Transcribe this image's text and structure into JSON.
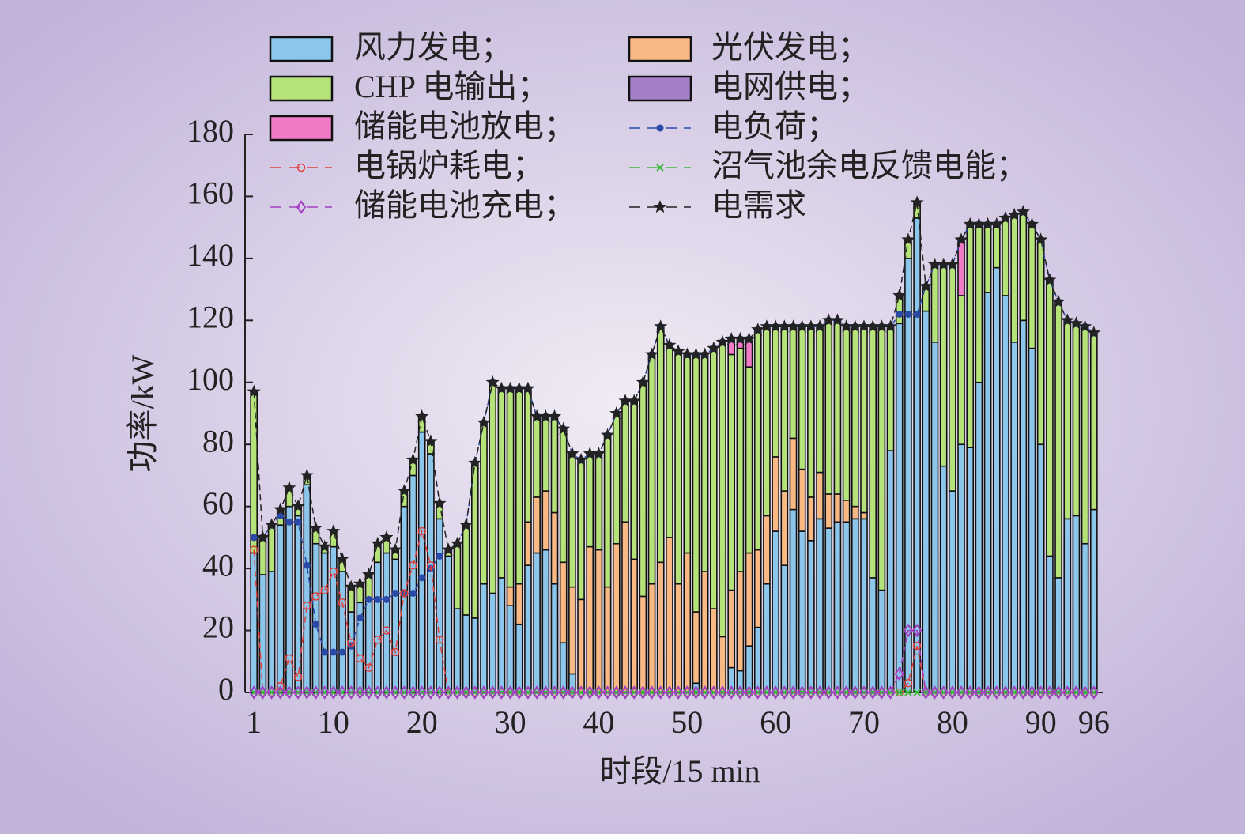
{
  "chart_data": {
    "type": "bar",
    "stacked": true,
    "xlabel": "时段/15 min",
    "ylabel": "功率/kW",
    "xlim": [
      0,
      97
    ],
    "ylim": [
      0,
      180
    ],
    "xticks": [
      1,
      10,
      20,
      30,
      40,
      50,
      60,
      70,
      80,
      90,
      96
    ],
    "yticks": [
      0,
      20,
      40,
      60,
      80,
      100,
      120,
      140,
      160,
      180
    ],
    "x": [
      1,
      2,
      3,
      4,
      5,
      6,
      7,
      8,
      9,
      10,
      11,
      12,
      13,
      14,
      15,
      16,
      17,
      18,
      19,
      20,
      21,
      22,
      23,
      24,
      25,
      26,
      27,
      28,
      29,
      30,
      31,
      32,
      33,
      34,
      35,
      36,
      37,
      38,
      39,
      40,
      41,
      42,
      43,
      44,
      45,
      46,
      47,
      48,
      49,
      50,
      51,
      52,
      53,
      54,
      55,
      56,
      57,
      58,
      59,
      60,
      61,
      62,
      63,
      64,
      65,
      66,
      67,
      68,
      69,
      70,
      71,
      72,
      73,
      74,
      75,
      76,
      77,
      78,
      79,
      80,
      81,
      82,
      83,
      84,
      85,
      86,
      87,
      88,
      89,
      90,
      91,
      92,
      93,
      94,
      95,
      96
    ],
    "series": [
      {
        "name": "风力发电；",
        "type": "bar",
        "color": "#8cc6ea",
        "values": [
          45,
          38,
          39,
          54,
          60,
          57,
          67,
          48,
          45,
          47,
          39,
          26,
          29,
          30,
          42,
          45,
          43,
          60,
          70,
          84,
          77,
          56,
          44,
          27,
          25,
          24,
          35,
          32,
          37,
          28,
          22,
          41,
          45,
          46,
          35,
          16,
          6,
          0,
          0,
          0,
          0,
          0,
          0,
          0,
          0,
          0,
          0,
          0,
          0,
          0,
          3,
          0,
          0,
          0,
          8,
          7,
          15,
          21,
          35,
          52,
          41,
          59,
          52,
          49,
          56,
          53,
          55,
          55,
          56,
          56,
          37,
          33,
          78,
          119,
          140,
          153,
          123,
          113,
          73,
          65,
          80,
          79,
          100,
          129,
          137,
          128,
          113,
          120,
          111,
          80,
          44,
          37,
          56,
          57,
          48,
          59
        ]
      },
      {
        "name": "光伏发电；",
        "type": "bar",
        "color": "#f9b985",
        "values": [
          0,
          0,
          0,
          0,
          0,
          0,
          0,
          0,
          0,
          0,
          0,
          0,
          0,
          0,
          0,
          0,
          0,
          0,
          0,
          0,
          0,
          0,
          0,
          0,
          0,
          0,
          0,
          0,
          0,
          6,
          13,
          14,
          18,
          19,
          23,
          26,
          28,
          30,
          47,
          46,
          34,
          48,
          55,
          43,
          31,
          35,
          42,
          50,
          35,
          45,
          23,
          39,
          27,
          18,
          25,
          32,
          30,
          25,
          22,
          24,
          24,
          23,
          20,
          14,
          15,
          11,
          9,
          7,
          4,
          2,
          0,
          0,
          0,
          0,
          0,
          0,
          0,
          0,
          0,
          0,
          0,
          0,
          0,
          0,
          0,
          0,
          0,
          0,
          0,
          0,
          0,
          0,
          0,
          0,
          0,
          0
        ]
      },
      {
        "name": "CHP 电输出；",
        "type": "bar",
        "color": "#b6e27a",
        "values": [
          52,
          12,
          15,
          5,
          6,
          3,
          3,
          5,
          2,
          5,
          4,
          8,
          6,
          8,
          6,
          5,
          3,
          5,
          5,
          5,
          4,
          5,
          2,
          21,
          29,
          50,
          52,
          68,
          61,
          64,
          63,
          43,
          26,
          24,
          31,
          43,
          43,
          45,
          30,
          31,
          49,
          42,
          39,
          51,
          69,
          74,
          76,
          62,
          75,
          64,
          83,
          70,
          84,
          95,
          76,
          72,
          60,
          71,
          61,
          42,
          53,
          36,
          46,
          55,
          47,
          56,
          56,
          56,
          58,
          60,
          81,
          85,
          40,
          9,
          6,
          5,
          8,
          25,
          65,
          73,
          48,
          72,
          51,
          22,
          14,
          25,
          41,
          35,
          40,
          66,
          89,
          89,
          64,
          62,
          70,
          57
        ]
      },
      {
        "name": "电网供电；",
        "type": "bar",
        "color": "#a47fc8",
        "values": [
          0,
          0,
          0,
          0,
          0,
          0,
          0,
          0,
          0,
          0,
          0,
          0,
          0,
          0,
          0,
          0,
          0,
          0,
          0,
          0,
          0,
          0,
          0,
          0,
          0,
          0,
          0,
          0,
          0,
          0,
          0,
          0,
          0,
          0,
          0,
          0,
          0,
          0,
          0,
          0,
          0,
          0,
          0,
          0,
          0,
          0,
          0,
          0,
          0,
          0,
          0,
          0,
          0,
          0,
          0,
          0,
          0,
          0,
          0,
          0,
          0,
          0,
          0,
          0,
          0,
          0,
          0,
          0,
          0,
          0,
          0,
          0,
          0,
          0,
          0,
          0,
          0,
          0,
          0,
          0,
          0,
          0,
          0,
          0,
          0,
          0,
          0,
          0,
          0,
          0,
          0,
          0,
          0,
          0,
          0,
          0
        ]
      },
      {
        "name": "储能电池放电；",
        "type": "bar",
        "color": "#f07ac6",
        "values": [
          0,
          0,
          0,
          0,
          0,
          0,
          0,
          0,
          0,
          0,
          0,
          0,
          0,
          0,
          0,
          0,
          0,
          0,
          0,
          0,
          0,
          0,
          0,
          0,
          0,
          0,
          0,
          0,
          0,
          0,
          0,
          0,
          0,
          0,
          0,
          0,
          0,
          0,
          0,
          0,
          0,
          0,
          0,
          0,
          0,
          0,
          0,
          0,
          0,
          0,
          0,
          0,
          0,
          0,
          5,
          3,
          9,
          0,
          0,
          0,
          0,
          0,
          0,
          0,
          0,
          0,
          0,
          0,
          0,
          0,
          0,
          0,
          0,
          0,
          0,
          0,
          0,
          0,
          0,
          0,
          18,
          0,
          0,
          0,
          0,
          0,
          0,
          0,
          0,
          0,
          0,
          0,
          0,
          0,
          0,
          0
        ]
      },
      {
        "name": "电负荷；",
        "type": "line",
        "marker": "dot",
        "color": "#2b4aa8",
        "values": [
          50,
          50,
          54,
          57,
          55,
          55,
          41,
          22,
          13,
          13,
          13,
          15,
          24,
          30,
          30,
          30,
          32,
          32,
          32,
          37,
          40,
          44,
          46,
          48,
          54,
          74,
          87,
          100,
          98,
          98,
          98,
          98,
          89,
          89,
          89,
          85,
          77,
          75,
          77,
          77,
          83,
          90,
          94,
          94,
          100,
          109,
          118,
          112,
          110,
          109,
          109,
          109,
          111,
          113,
          114,
          114,
          114,
          117,
          118,
          118,
          118,
          118,
          118,
          118,
          118,
          120,
          120,
          118,
          118,
          118,
          118,
          118,
          118,
          122,
          122,
          122,
          131,
          138,
          138,
          138,
          146,
          151,
          151,
          151,
          151,
          153,
          154,
          155,
          151,
          146,
          133,
          126,
          120,
          119,
          118,
          116
        ]
      },
      {
        "name": "电锅炉耗电；",
        "type": "line",
        "marker": "circle",
        "color": "#e0403a",
        "values": [
          46,
          0,
          0,
          2,
          11,
          5,
          28,
          31,
          33,
          39,
          29,
          16,
          11,
          8,
          17,
          20,
          13,
          32,
          41,
          52,
          41,
          17,
          0,
          0,
          0,
          0,
          0,
          0,
          0,
          0,
          0,
          0,
          0,
          0,
          0,
          0,
          0,
          0,
          0,
          0,
          0,
          0,
          0,
          0,
          0,
          0,
          0,
          0,
          0,
          0,
          0,
          0,
          0,
          0,
          0,
          0,
          0,
          0,
          0,
          0,
          0,
          0,
          0,
          0,
          0,
          0,
          0,
          0,
          0,
          0,
          0,
          0,
          0,
          0,
          3,
          15,
          0,
          0,
          0,
          0,
          0,
          0,
          0,
          0,
          0,
          0,
          0,
          0,
          0,
          0,
          0,
          0,
          0,
          0,
          0,
          0
        ]
      },
      {
        "name": "沼气池余电反馈电能；",
        "type": "line",
        "marker": "x",
        "color": "#3db83d",
        "values": [
          0,
          0,
          0,
          0,
          0,
          0,
          0,
          0,
          0,
          0,
          0,
          0,
          0,
          0,
          0,
          0,
          0,
          0,
          0,
          0,
          0,
          0,
          0,
          0,
          0,
          0,
          0,
          0,
          0,
          0,
          0,
          0,
          0,
          0,
          0,
          0,
          0,
          0,
          0,
          0,
          0,
          0,
          0,
          0,
          0,
          0,
          0,
          0,
          0,
          0,
          0,
          0,
          0,
          0,
          0,
          0,
          0,
          0,
          0,
          0,
          0,
          0,
          0,
          0,
          0,
          0,
          0,
          0,
          0,
          0,
          0,
          0,
          0,
          0,
          0,
          0,
          0,
          0,
          0,
          0,
          0,
          0,
          0,
          0,
          0,
          0,
          0,
          0,
          0,
          0,
          0,
          0,
          0,
          0,
          0,
          0
        ]
      },
      {
        "name": "储能电池充电；",
        "type": "line",
        "marker": "diamond",
        "color": "#a040c0",
        "values": [
          0,
          0,
          0,
          0,
          0,
          0,
          0,
          0,
          0,
          0,
          0,
          0,
          0,
          0,
          0,
          0,
          0,
          0,
          0,
          0,
          0,
          0,
          0,
          0,
          0,
          0,
          0,
          0,
          0,
          0,
          0,
          0,
          0,
          0,
          0,
          0,
          0,
          0,
          0,
          0,
          0,
          0,
          0,
          0,
          0,
          0,
          0,
          0,
          0,
          0,
          0,
          0,
          0,
          0,
          0,
          0,
          0,
          0,
          0,
          0,
          0,
          0,
          0,
          0,
          0,
          0,
          0,
          0,
          0,
          0,
          0,
          0,
          0,
          6,
          20,
          20,
          0,
          0,
          0,
          0,
          0,
          0,
          0,
          0,
          0,
          0,
          0,
          0,
          0,
          0,
          0,
          0,
          0,
          0,
          0,
          0
        ]
      },
      {
        "name": "电需求",
        "type": "line",
        "marker": "star",
        "color": "#222222",
        "values": [
          97,
          50,
          54,
          59,
          66,
          60,
          70,
          53,
          47,
          52,
          43,
          34,
          35,
          38,
          48,
          50,
          46,
          65,
          75,
          89,
          81,
          61,
          46,
          48,
          54,
          74,
          87,
          100,
          98,
          98,
          98,
          98,
          89,
          89,
          89,
          85,
          77,
          75,
          77,
          77,
          83,
          90,
          94,
          94,
          100,
          109,
          118,
          112,
          110,
          109,
          109,
          109,
          111,
          113,
          114,
          114,
          114,
          117,
          118,
          118,
          118,
          118,
          118,
          118,
          118,
          120,
          120,
          118,
          118,
          118,
          118,
          118,
          118,
          128,
          146,
          158,
          131,
          138,
          138,
          138,
          146,
          151,
          151,
          151,
          151,
          153,
          154,
          155,
          151,
          146,
          133,
          126,
          120,
          119,
          118,
          116
        ]
      }
    ]
  }
}
